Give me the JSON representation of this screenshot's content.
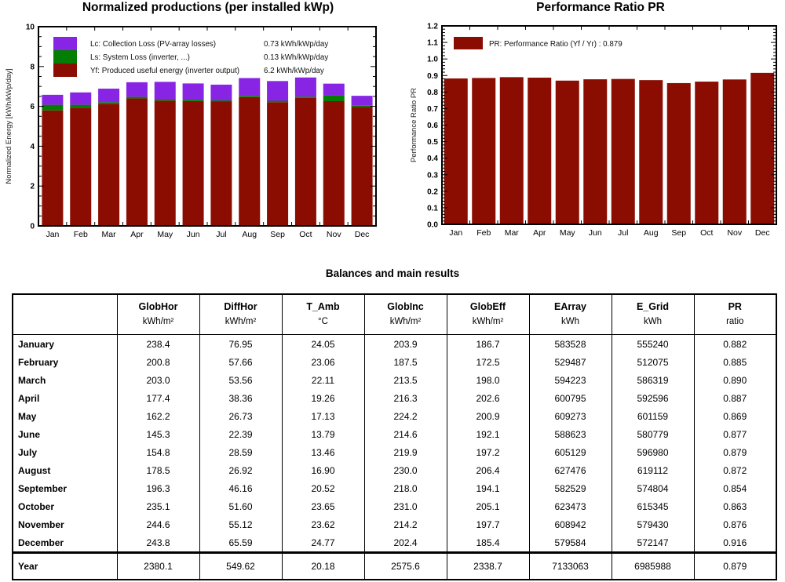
{
  "chart_data": [
    {
      "type": "bar",
      "stacked": true,
      "title": "Normalized productions (per installed kWp)",
      "ylabel": "Normalized Energy [kWh/kWp/day]",
      "ylim": [
        0,
        10
      ],
      "ytick_major": 2,
      "ytick_minor": 0.5,
      "grid": false,
      "legend_position": "top-left-inside",
      "categories": [
        "Jan",
        "Feb",
        "Mar",
        "Apr",
        "May",
        "Jun",
        "Jul",
        "Aug",
        "Sep",
        "Oct",
        "Nov",
        "Dec"
      ],
      "series": [
        {
          "id": "Yf",
          "name": "Yf: Produced useful energy  (inverter output)",
          "legend_value": "6.2 kWh/kWp/day",
          "color": "#8b0d02",
          "values": [
            5.8,
            5.93,
            6.13,
            6.4,
            6.29,
            6.27,
            6.24,
            6.47,
            6.21,
            6.43,
            6.26,
            5.98
          ]
        },
        {
          "id": "Ls",
          "name": "Ls: System Loss  (inverter, ...)",
          "legend_value": "0.13 kWh/kWp/day",
          "color": "#037e03",
          "values": [
            0.28,
            0.15,
            0.08,
            0.08,
            0.07,
            0.07,
            0.06,
            0.06,
            0.07,
            0.06,
            0.3,
            0.05
          ]
        },
        {
          "id": "Lc",
          "name": "Lc: Collection Loss (PV-array losses)",
          "legend_value": "0.73 kWh/kWp/day",
          "color": "#8824e4",
          "values": [
            0.5,
            0.62,
            0.68,
            0.73,
            0.87,
            0.81,
            0.79,
            0.89,
            0.99,
            0.96,
            0.58,
            0.5
          ]
        }
      ]
    },
    {
      "type": "bar",
      "stacked": false,
      "title": "Performance Ratio PR",
      "ylabel": "Performance Ratio PR",
      "ylim": [
        0,
        1.2
      ],
      "ytick_major": 0.1,
      "ytick_minor": 0.02,
      "grid": false,
      "legend_position": "top-left-inside",
      "legend_label": "PR: Performance Ratio (Yf / Yr) :",
      "annual_value": "0.879",
      "categories": [
        "Jan",
        "Feb",
        "Mar",
        "Apr",
        "May",
        "Jun",
        "Jul",
        "Aug",
        "Sep",
        "Oct",
        "Nov",
        "Dec"
      ],
      "series": [
        {
          "id": "PR",
          "name": "PR: Performance Ratio (Yf / Yr)",
          "color": "#8b0d02",
          "values": [
            0.882,
            0.885,
            0.89,
            0.887,
            0.869,
            0.877,
            0.879,
            0.872,
            0.854,
            0.863,
            0.876,
            0.916
          ]
        }
      ]
    }
  ],
  "table": {
    "title": "Balances and main results",
    "columns": [
      "",
      "GlobHor",
      "DiffHor",
      "T_Amb",
      "GlobInc",
      "GlobEff",
      "EArray",
      "E_Grid",
      "PR"
    ],
    "units": [
      "",
      "kWh/m²",
      "kWh/m²",
      "°C",
      "kWh/m²",
      "kWh/m²",
      "kWh",
      "kWh",
      "ratio"
    ],
    "rows": [
      [
        "January",
        "238.4",
        "76.95",
        "24.05",
        "203.9",
        "186.7",
        "583528",
        "555240",
        "0.882"
      ],
      [
        "February",
        "200.8",
        "57.66",
        "23.06",
        "187.5",
        "172.5",
        "529487",
        "512075",
        "0.885"
      ],
      [
        "March",
        "203.0",
        "53.56",
        "22.11",
        "213.5",
        "198.0",
        "594223",
        "586319",
        "0.890"
      ],
      [
        "April",
        "177.4",
        "38.36",
        "19.26",
        "216.3",
        "202.6",
        "600795",
        "592596",
        "0.887"
      ],
      [
        "May",
        "162.2",
        "26.73",
        "17.13",
        "224.2",
        "200.9",
        "609273",
        "601159",
        "0.869"
      ],
      [
        "June",
        "145.3",
        "22.39",
        "13.79",
        "214.6",
        "192.1",
        "588623",
        "580779",
        "0.877"
      ],
      [
        "July",
        "154.8",
        "28.59",
        "13.46",
        "219.9",
        "197.2",
        "605129",
        "596980",
        "0.879"
      ],
      [
        "August",
        "178.5",
        "26.92",
        "16.90",
        "230.0",
        "206.4",
        "627476",
        "619112",
        "0.872"
      ],
      [
        "September",
        "196.3",
        "46.16",
        "20.52",
        "218.0",
        "194.1",
        "582529",
        "574804",
        "0.854"
      ],
      [
        "October",
        "235.1",
        "51.60",
        "23.65",
        "231.0",
        "205.1",
        "623473",
        "615345",
        "0.863"
      ],
      [
        "November",
        "244.6",
        "55.12",
        "23.62",
        "214.2",
        "197.7",
        "608942",
        "579430",
        "0.876"
      ],
      [
        "December",
        "243.8",
        "65.59",
        "24.77",
        "202.4",
        "185.4",
        "579584",
        "572147",
        "0.916"
      ]
    ],
    "total_row": [
      "Year",
      "2380.1",
      "549.62",
      "20.18",
      "2575.6",
      "2338.7",
      "7133063",
      "6985988",
      "0.879"
    ]
  }
}
